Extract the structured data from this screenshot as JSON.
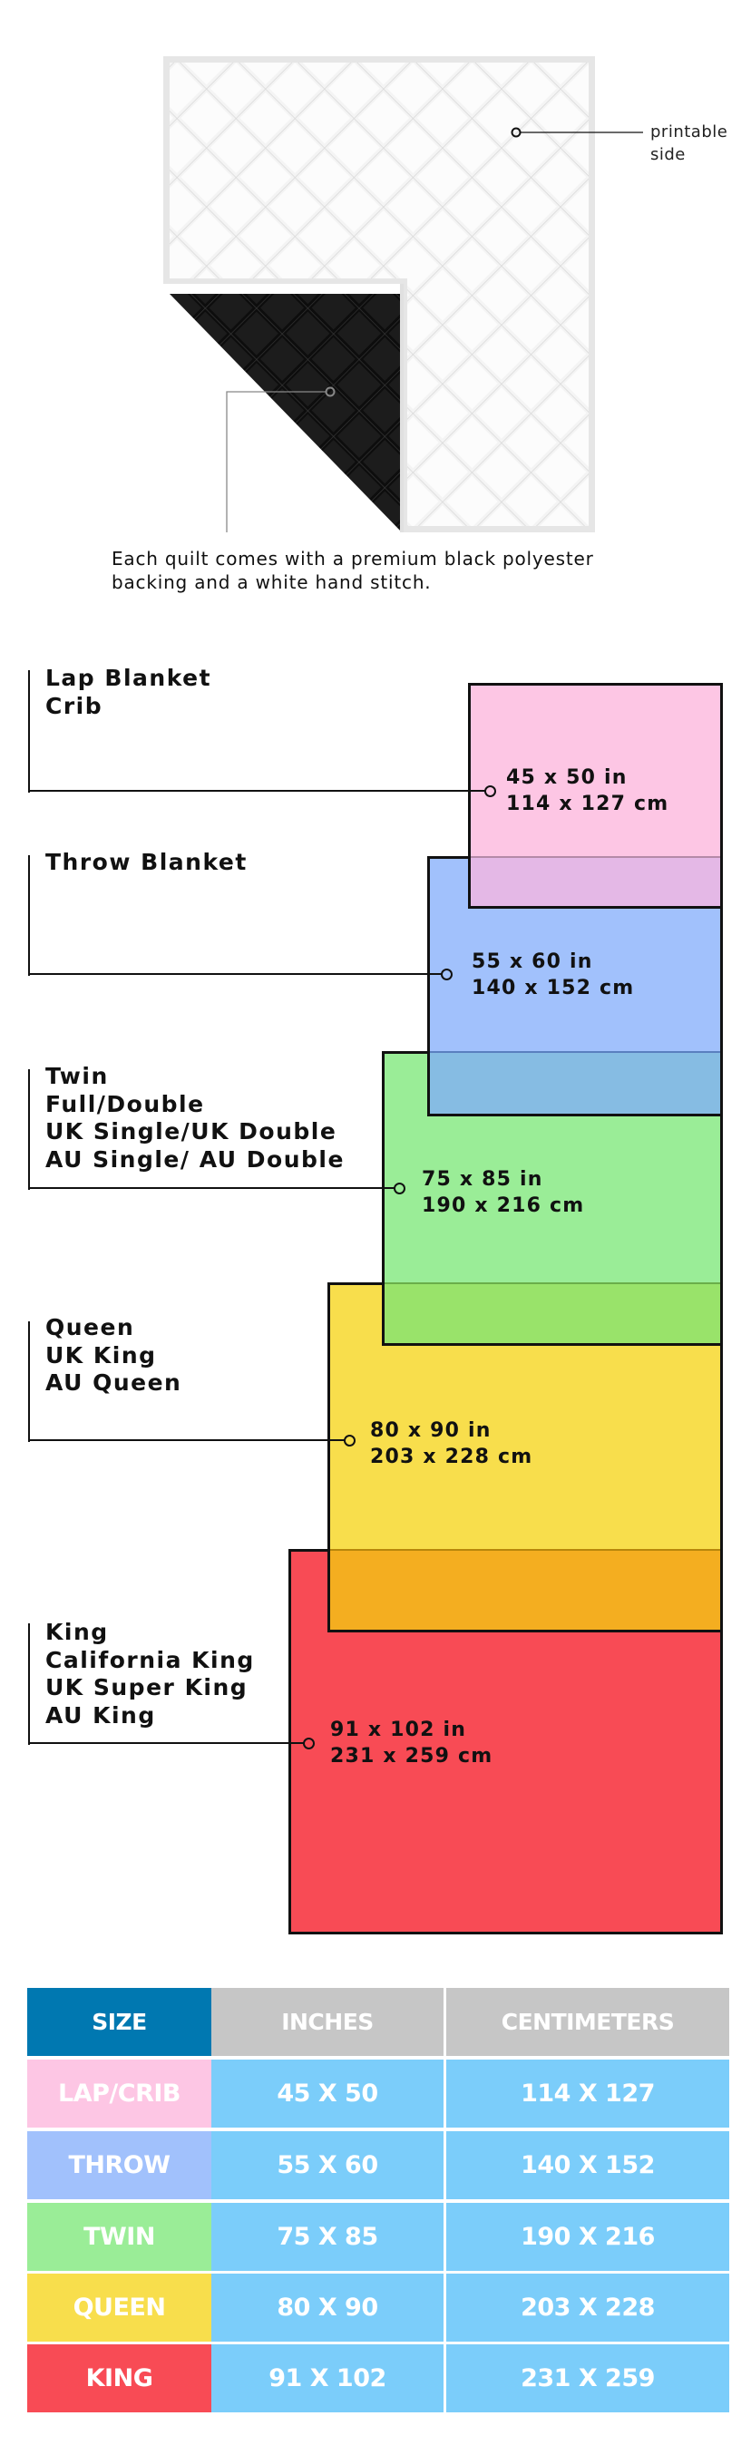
{
  "quilt": {
    "printable_label": [
      "printable",
      "side"
    ],
    "caption": [
      "Each quilt comes with a premium black polyester",
      "backing and a white hand stitch."
    ]
  },
  "sizes": [
    {
      "names": [
        "Lap Blanket",
        "Crib"
      ],
      "inches": "45 x 50 in",
      "cm": "114 x 127 cm",
      "color": "#fdc6e4"
    },
    {
      "names": [
        "Throw Blanket"
      ],
      "inches": "55 x 60 in",
      "cm": "140 x 152 cm",
      "color": "#a1c1fc"
    },
    {
      "names": [
        "Twin",
        "Full/Double",
        "UK Single/UK Double",
        "AU Single/ AU Double"
      ],
      "inches": "75 x 85 in",
      "cm": "190 x 216 cm",
      "color": "#9aed97"
    },
    {
      "names": [
        "Queen",
        "UK King",
        "AU Queen"
      ],
      "inches": "80 x 90 in",
      "cm": "203 x 228 cm",
      "color": "#f8de4c"
    },
    {
      "names": [
        "King",
        "California King",
        "UK Super King",
        "AU King"
      ],
      "inches": "91 x 102 in",
      "cm": "231 x 259 cm",
      "color": "#f84b55"
    }
  ],
  "table": {
    "headers": [
      "SIZE",
      "INCHES",
      "CENTIMETERS"
    ],
    "header_colors": {
      "size": "#0078b1",
      "other": "#c6c6c6"
    },
    "value_color": "#7bcdfa",
    "rows": [
      {
        "size": "LAP/CRIB",
        "inches": "45 X 50",
        "cm": "114 X 127",
        "color": "#fdc6e4"
      },
      {
        "size": "THROW",
        "inches": "55 X 60",
        "cm": "140 X 152",
        "color": "#a1c1fc"
      },
      {
        "size": "TWIN",
        "inches": "75 X 85",
        "cm": "190 X 216",
        "color": "#9aed97"
      },
      {
        "size": "QUEEN",
        "inches": "80 X 90",
        "cm": "203 X 228",
        "color": "#f8de4c"
      },
      {
        "size": "KING",
        "inches": "91 X 102",
        "cm": "231 X 259",
        "color": "#f84b55"
      }
    ]
  }
}
